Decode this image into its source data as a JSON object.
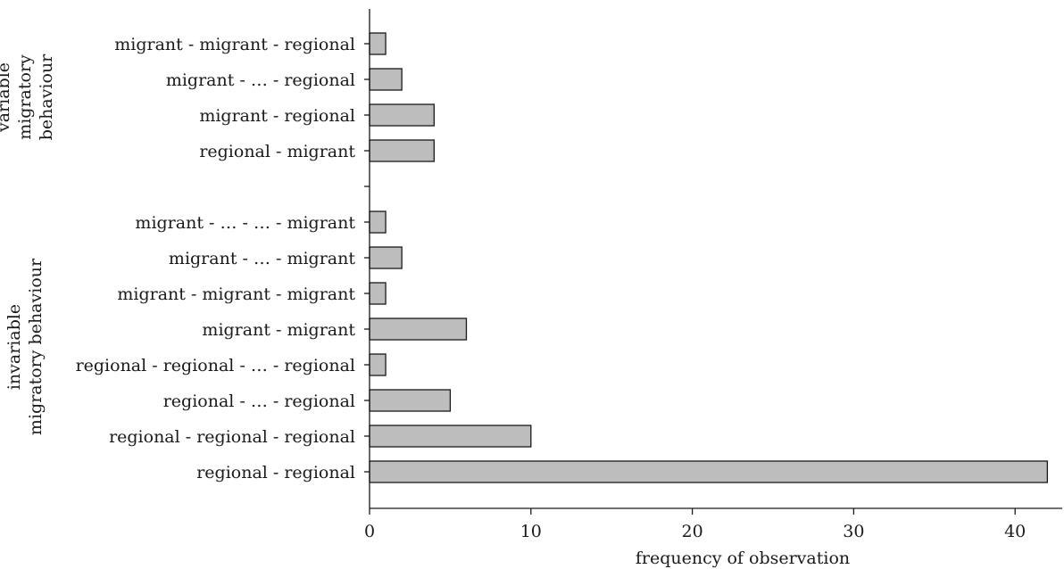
{
  "chart_data": {
    "type": "bar",
    "orientation": "horizontal",
    "categories": [
      "migrant - migrant - regional",
      "migrant - … - regional",
      "migrant - regional",
      "regional - migrant",
      "migrant - … -  … - migrant",
      "migrant - … - migrant",
      "migrant - migrant - migrant",
      "migrant - migrant",
      "regional - regional - … - regional",
      "regional - … - regional",
      "regional - regional - regional",
      "regional - regional"
    ],
    "values": [
      1,
      2,
      4,
      4,
      1,
      2,
      1,
      6,
      1,
      5,
      10,
      42
    ],
    "groups": [
      {
        "label_lines": [
          "variable",
          "migratory",
          "behaviour"
        ],
        "categories": [
          0,
          1,
          2,
          3
        ]
      },
      {
        "label_lines": [
          "invariable",
          "migratory behaviour"
        ],
        "categories": [
          4,
          5,
          6,
          7,
          8,
          9,
          10,
          11
        ]
      }
    ],
    "xlabel": "frequency of observation",
    "ylabel": "",
    "title": "",
    "xlim": [
      0,
      43
    ],
    "xticks": [
      0,
      10,
      20,
      30,
      40
    ],
    "grid": false,
    "bar_color": "#bdbdbd",
    "edge_color": "#1a1a1a"
  }
}
